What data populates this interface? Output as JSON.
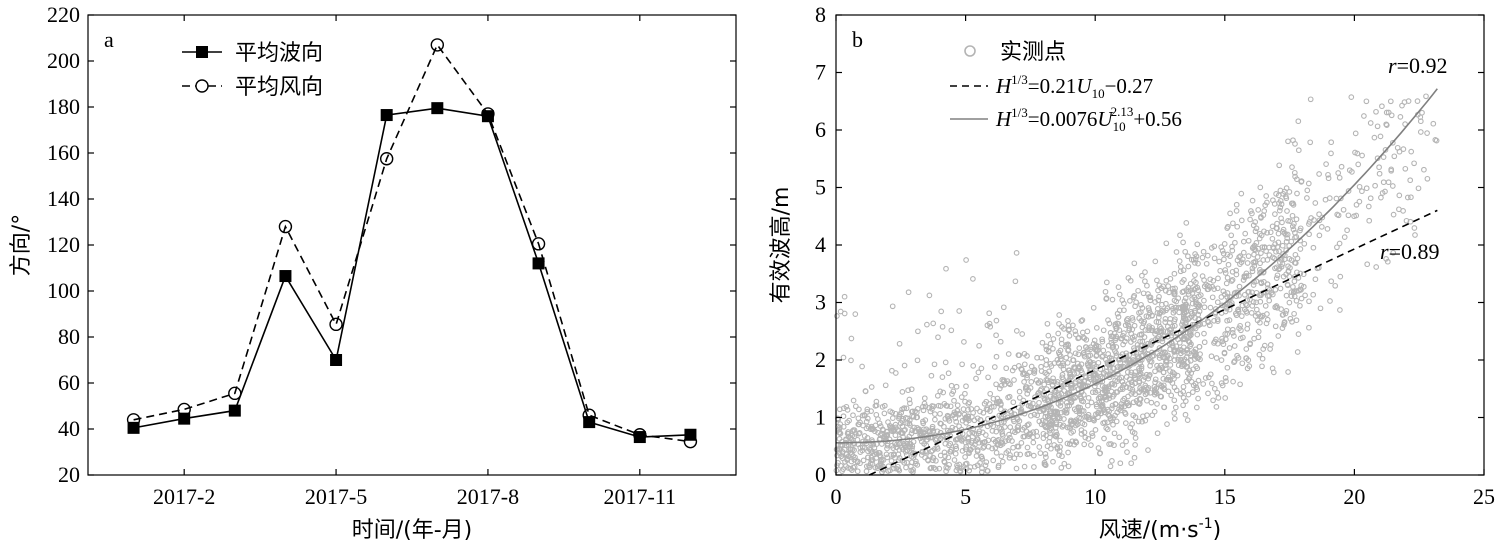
{
  "chart_data": [
    {
      "type": "line",
      "panel_label": "a",
      "xlabel": "时间/(年-月)",
      "ylabel": "方向/°",
      "ylim": [
        20,
        220
      ],
      "yticks": [
        20,
        40,
        60,
        80,
        100,
        120,
        140,
        160,
        180,
        200,
        220
      ],
      "xlim": [
        0.1,
        12.9
      ],
      "xticks": [
        {
          "value": 2,
          "label": "2017-2"
        },
        {
          "value": 5,
          "label": "2017-5"
        },
        {
          "value": 8,
          "label": "2017-8"
        },
        {
          "value": 11,
          "label": "2017-11"
        }
      ],
      "x": [
        1,
        2,
        3,
        4,
        5,
        6,
        7,
        8,
        9,
        10,
        11,
        12
      ],
      "series": [
        {
          "name": "平均波向",
          "style": "solid",
          "marker": "filled-square",
          "color": "#000000",
          "values": [
            40.5,
            44.5,
            48,
            106.5,
            70,
            176.5,
            179.5,
            176,
            112,
            43,
            36.5,
            37.5
          ]
        },
        {
          "name": "平均风向",
          "style": "dashed",
          "marker": "open-circle",
          "color": "#000000",
          "values": [
            44,
            48.5,
            55.5,
            128,
            85.5,
            157.5,
            207,
            177,
            120.5,
            46,
            37.5,
            34.5
          ]
        }
      ],
      "legend_position": "top-left"
    },
    {
      "type": "scatter",
      "panel_label": "b",
      "xlabel": "风速/(m·s",
      "xlabel_sup": "-1",
      "xlabel_end": ")",
      "ylabel": "有效波高/m",
      "xlim": [
        0,
        25
      ],
      "ylim": [
        0,
        8
      ],
      "xticks": [
        0,
        5,
        10,
        15,
        20,
        25
      ],
      "yticks": [
        0,
        1,
        2,
        3,
        4,
        5,
        6,
        7,
        8
      ],
      "point_color": "#b4b4b4",
      "legend_position": "top-left",
      "series": [
        {
          "name": "实测点",
          "kind": "scatter"
        },
        {
          "name": "H1/3=0.21U10−0.27",
          "kind": "line",
          "style": "dashed",
          "color": "#000000",
          "fit": {
            "a": 0.21,
            "b": -0.27
          },
          "r_label": "r=0.89"
        },
        {
          "name": "H1/3=0.0076U10^2.13+0.56",
          "kind": "line",
          "style": "solid",
          "color": "#808080",
          "fit": {
            "a": 0.0076,
            "p": 2.13,
            "c": 0.56
          },
          "r_label": "r=0.92"
        }
      ],
      "legend_text": {
        "scatter": "实测点",
        "h": "H",
        "h_sup": "1/3",
        "lin_mid": "=0.21",
        "u": "U",
        "u_sub": "10",
        "lin_end": "−0.27",
        "pow_mid": "=0.0076",
        "pow_sup": "2.13",
        "pow_end": "+0.56",
        "r_prefix": "r",
        "r_lin": "=0.89",
        "r_pow": "=0.92"
      }
    }
  ]
}
